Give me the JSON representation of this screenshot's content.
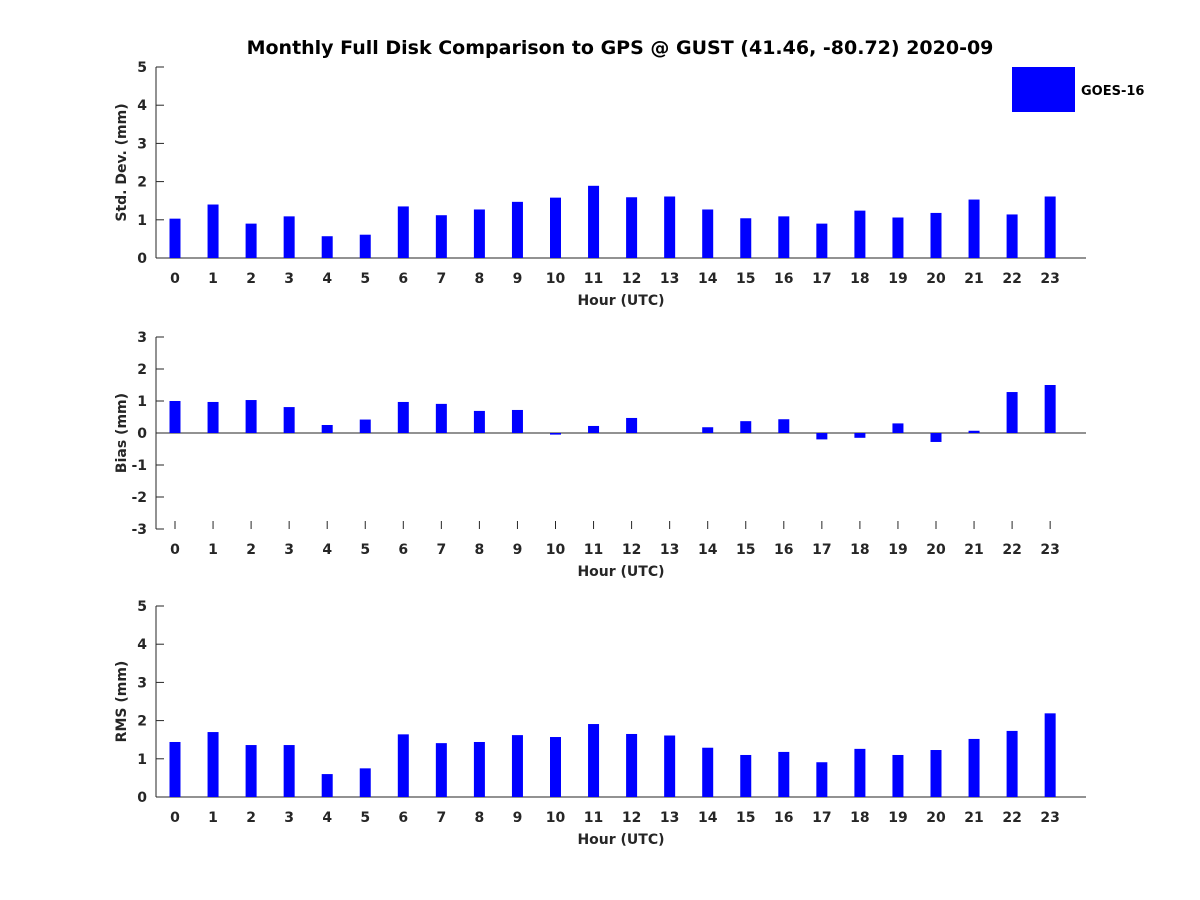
{
  "chart_data": {
    "type": "bar",
    "title": "Monthly Full Disk Comparison to GPS @ GUST (41.46, -80.72) 2020-09",
    "legend": {
      "entries": [
        "GOES-16"
      ],
      "placement": "top-right"
    },
    "bar_color": "#0000ff",
    "grid": false,
    "categories": [
      "0",
      "1",
      "2",
      "3",
      "4",
      "5",
      "6",
      "7",
      "8",
      "9",
      "10",
      "11",
      "12",
      "13",
      "14",
      "15",
      "16",
      "17",
      "18",
      "19",
      "20",
      "21",
      "22",
      "23"
    ],
    "panels": [
      {
        "ylabel": "Std. Dev. (mm)",
        "xlabel": "Hour (UTC)",
        "ylim": [
          0,
          5
        ],
        "yticks": [
          0,
          1,
          2,
          3,
          4,
          5
        ],
        "series": [
          {
            "name": "GOES-16",
            "values": [
              1.03,
              1.4,
              0.9,
              1.09,
              0.57,
              0.61,
              1.35,
              1.12,
              1.27,
              1.47,
              1.58,
              1.89,
              1.59,
              1.61,
              1.27,
              1.04,
              1.09,
              0.9,
              1.24,
              1.06,
              1.18,
              1.53,
              1.14,
              1.61
            ]
          }
        ]
      },
      {
        "ylabel": "Bias (mm)",
        "xlabel": "Hour (UTC)",
        "ylim": [
          -3,
          3
        ],
        "yticks": [
          -3,
          -2,
          -1,
          0,
          1,
          2,
          3
        ],
        "series": [
          {
            "name": "GOES-16",
            "values": [
              1.0,
              0.97,
              1.03,
              0.81,
              0.25,
              0.42,
              0.97,
              0.91,
              0.69,
              0.72,
              -0.05,
              0.22,
              0.47,
              0.0,
              0.18,
              0.37,
              0.43,
              -0.2,
              -0.15,
              0.3,
              -0.28,
              0.07,
              1.28,
              1.5
            ]
          }
        ]
      },
      {
        "ylabel": "RMS (mm)",
        "xlabel": "Hour (UTC)",
        "ylim": [
          0,
          5
        ],
        "yticks": [
          0,
          1,
          2,
          3,
          4,
          5
        ],
        "series": [
          {
            "name": "GOES-16",
            "values": [
              1.44,
              1.7,
              1.36,
              1.36,
              0.6,
              0.75,
              1.64,
              1.41,
              1.44,
              1.62,
              1.57,
              1.91,
              1.65,
              1.61,
              1.29,
              1.1,
              1.18,
              0.91,
              1.26,
              1.1,
              1.23,
              1.52,
              1.73,
              2.19
            ]
          }
        ]
      }
    ]
  }
}
